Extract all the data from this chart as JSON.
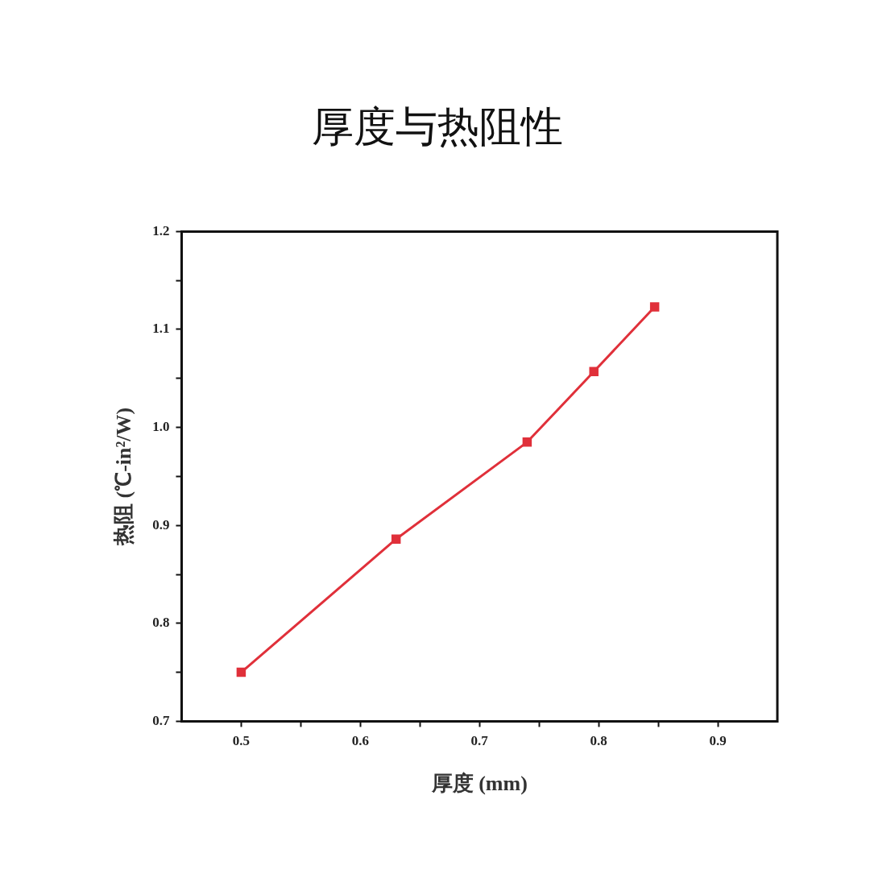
{
  "chart_data": {
    "type": "line",
    "title": "厚度与热阻性",
    "xlabel": "厚度 (mm)",
    "ylabel": "热阻 (℃-in²/W)",
    "x": [
      0.5,
      0.63,
      0.74,
      0.796,
      0.847
    ],
    "series": [
      {
        "color": "#e0303a",
        "values": [
          0.75,
          0.886,
          0.985,
          1.057,
          1.123
        ]
      }
    ],
    "xlim": [
      0.45,
      0.95
    ],
    "xticks": [
      0.5,
      {
        "value": 0.55,
        "label": null
      },
      0.6,
      {
        "value": 0.65,
        "label": null
      },
      0.7,
      {
        "value": 0.75,
        "label": null
      },
      0.8,
      {
        "value": 0.85,
        "label": null
      },
      0.9
    ],
    "ylim": [
      0.7,
      1.2
    ],
    "yticks": [
      0.7,
      {
        "value": 0.75,
        "label": null
      },
      0.8,
      {
        "value": 0.85,
        "label": null
      },
      0.9,
      {
        "value": 0.95,
        "label": null
      },
      {
        "value": 1,
        "label": "1.0"
      },
      {
        "value": 1.05,
        "label": null
      },
      1.1,
      {
        "value": 1.15,
        "label": null
      },
      1.2
    ],
    "marker": "square",
    "line_style": "solid",
    "grid": false,
    "legend": false
  }
}
